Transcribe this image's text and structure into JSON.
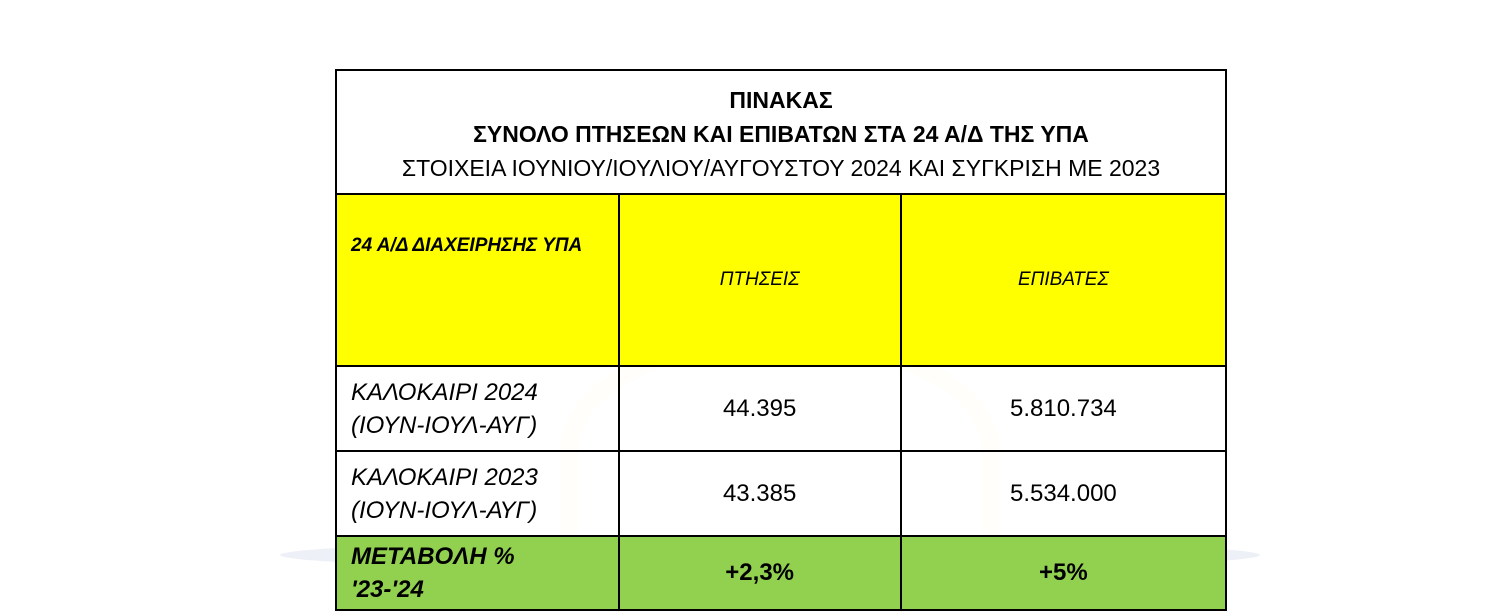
{
  "table": {
    "title": [
      "ΠΙΝΑΚΑΣ",
      "ΣΥΝΟΛΟ ΠΤΗΣΕΩΝ ΚΑΙ ΕΠΙΒΑΤΩΝ ΣΤΑ 24 Α/Δ ΤΗΣ ΥΠΑ",
      "ΣΤΟΙΧΕΙΑ ΙΟΥΝΙΟΥ/ΙΟΥΛΙΟΥ/ΑΥΓΟΥΣΤΟΥ 2024 ΚΑΙ ΣΥΓΚΡΙΣΗ ΜΕ 2023"
    ],
    "header": [
      "24 Α/Δ ΔΙΑΧΕΙΡΗΣΗΣ ΥΠΑ",
      "ΠΤΗΣΕΙΣ",
      "ΕΠΙΒΑΤΕΣ"
    ],
    "rows": [
      [
        [
          "ΚΑΛΟΚΑΙΡΙ 2024",
          "(ΙΟΥΝ-ΙΟΥΛ-ΑΥΓ)"
        ],
        "44.395",
        "5.810.734"
      ],
      [
        [
          "ΚΑΛΟΚΑΙΡΙ 2023",
          "(ΙΟΥΝ-ΙΟΥΛ-ΑΥΓ)"
        ],
        "43.385",
        "5.534.000"
      ],
      [
        [
          "ΜΕΤΑΒΟΛΗ %",
          "'23-'24"
        ],
        "+2,3%",
        "+5%"
      ]
    ]
  }
}
